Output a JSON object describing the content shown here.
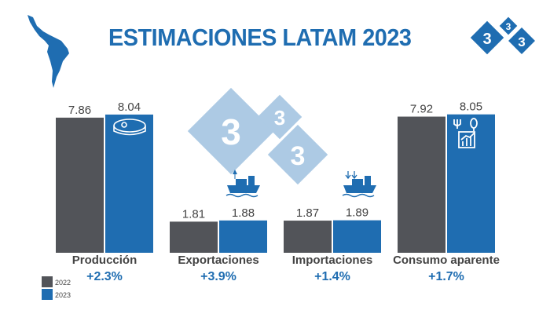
{
  "header": {
    "title": "ESTIMACIONES LATAM 2023",
    "logo_text": "333"
  },
  "colors": {
    "2022": "#525459",
    "2023": "#1f6db1",
    "accent": "#1f6db1",
    "watermark": "#a9c8e3"
  },
  "icons": [
    "latin-america-map-icon",
    "logo-333-icon",
    "meat-icon",
    "export-ship-icon",
    "import-ship-icon",
    "consumption-icon"
  ],
  "chart_data": {
    "type": "bar",
    "title": "ESTIMACIONES LATAM 2023",
    "categories": [
      "Producción",
      "Exportaciones",
      "Importaciones",
      "Consumo aparente"
    ],
    "series": [
      {
        "name": "2022",
        "values": [
          7.86,
          1.81,
          1.87,
          7.92
        ]
      },
      {
        "name": "2023",
        "values": [
          8.04,
          1.88,
          1.89,
          8.05
        ]
      }
    ],
    "changes": [
      "+2.3%",
      "+3.9%",
      "+1.4%",
      "+1.7%"
    ],
    "legend": "bottom-left",
    "grid": false
  }
}
